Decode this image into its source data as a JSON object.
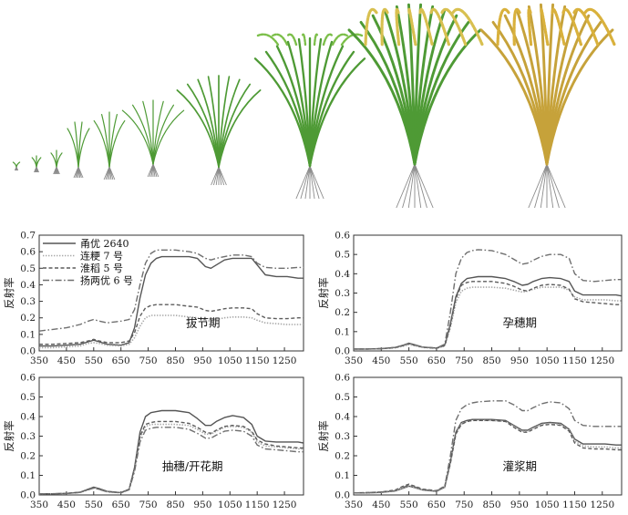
{
  "colors": {
    "series": [
      "#555555",
      "#a8a8a8",
      "#5c5c5c",
      "#6f6f6f"
    ],
    "leaf_green": "#4e9a35",
    "panicle_gold": "#d9b13c",
    "root": "#8a8a8a"
  },
  "illustration": {
    "alt": "rice-growth-stages-illustration",
    "plant_count": 10
  },
  "chart_data": [
    {
      "type": "line",
      "stage_label": "拔节期",
      "ylabel": "反射率",
      "x_ticks": [
        "350",
        "450",
        "550",
        "650",
        "750",
        "850",
        "950",
        "1050",
        "1150",
        "1250"
      ],
      "y_ticks": [
        "0.0",
        "0.1",
        "0.2",
        "0.3",
        "0.4",
        "0.5",
        "0.6",
        "0.7"
      ],
      "xlim": [
        350,
        1320
      ],
      "ylim": [
        0,
        0.7
      ],
      "legend": {
        "placement": "top-left"
      },
      "x": [
        350,
        400,
        450,
        500,
        530,
        550,
        570,
        600,
        650,
        680,
        700,
        720,
        740,
        760,
        780,
        800,
        850,
        900,
        930,
        960,
        980,
        1000,
        1030,
        1060,
        1100,
        1130,
        1150,
        1180,
        1220,
        1260,
        1300,
        1320
      ],
      "series": [
        {
          "name": "甬优 2640",
          "dash": "solid",
          "values": [
            0.03,
            0.03,
            0.035,
            0.04,
            0.055,
            0.065,
            0.055,
            0.04,
            0.035,
            0.05,
            0.14,
            0.32,
            0.46,
            0.53,
            0.56,
            0.57,
            0.57,
            0.57,
            0.56,
            0.51,
            0.5,
            0.52,
            0.55,
            0.56,
            0.56,
            0.56,
            0.52,
            0.46,
            0.45,
            0.45,
            0.44,
            0.44
          ]
        },
        {
          "name": "连粳 7 号",
          "dash": "dot",
          "values": [
            0.02,
            0.02,
            0.025,
            0.03,
            0.045,
            0.05,
            0.045,
            0.035,
            0.03,
            0.04,
            0.08,
            0.15,
            0.2,
            0.215,
            0.215,
            0.215,
            0.215,
            0.205,
            0.2,
            0.185,
            0.18,
            0.19,
            0.2,
            0.205,
            0.205,
            0.2,
            0.185,
            0.17,
            0.165,
            0.16,
            0.16,
            0.16
          ]
        },
        {
          "name": "淮稻 5 号",
          "dash": "dash",
          "values": [
            0.04,
            0.04,
            0.045,
            0.05,
            0.06,
            0.07,
            0.06,
            0.05,
            0.05,
            0.06,
            0.11,
            0.21,
            0.26,
            0.275,
            0.28,
            0.28,
            0.28,
            0.27,
            0.265,
            0.245,
            0.24,
            0.245,
            0.255,
            0.26,
            0.26,
            0.255,
            0.225,
            0.2,
            0.195,
            0.195,
            0.2,
            0.2
          ]
        },
        {
          "name": "扬两优 6 号",
          "dash": "dashdot",
          "values": [
            0.12,
            0.13,
            0.14,
            0.16,
            0.18,
            0.19,
            0.18,
            0.17,
            0.18,
            0.19,
            0.25,
            0.4,
            0.53,
            0.59,
            0.61,
            0.61,
            0.61,
            0.6,
            0.59,
            0.56,
            0.55,
            0.56,
            0.57,
            0.58,
            0.58,
            0.57,
            0.53,
            0.505,
            0.5,
            0.5,
            0.505,
            0.505
          ]
        }
      ]
    },
    {
      "type": "line",
      "stage_label": "孕穗期",
      "ylabel": "反射率",
      "x_ticks": [
        "350",
        "450",
        "550",
        "650",
        "750",
        "850",
        "950",
        "1050",
        "1150",
        "1250"
      ],
      "y_ticks": [
        "0.0",
        "0.1",
        "0.2",
        "0.3",
        "0.4",
        "0.5",
        "0.6"
      ],
      "xlim": [
        350,
        1320
      ],
      "ylim": [
        0,
        0.6
      ],
      "x": [
        350,
        400,
        450,
        500,
        530,
        550,
        570,
        600,
        650,
        680,
        700,
        720,
        740,
        760,
        780,
        800,
        850,
        900,
        930,
        960,
        980,
        1000,
        1030,
        1060,
        1100,
        1130,
        1150,
        1180,
        1220,
        1260,
        1300,
        1320
      ],
      "series": [
        {
          "name": "甬优 2640",
          "dash": "solid",
          "values": [
            0.01,
            0.01,
            0.012,
            0.018,
            0.03,
            0.04,
            0.032,
            0.02,
            0.015,
            0.03,
            0.14,
            0.28,
            0.35,
            0.375,
            0.38,
            0.385,
            0.385,
            0.375,
            0.36,
            0.34,
            0.345,
            0.36,
            0.375,
            0.38,
            0.375,
            0.36,
            0.31,
            0.29,
            0.29,
            0.29,
            0.29,
            0.285
          ]
        },
        {
          "name": "连粳 7 号",
          "dash": "dot",
          "values": [
            0.01,
            0.01,
            0.012,
            0.016,
            0.025,
            0.033,
            0.027,
            0.018,
            0.013,
            0.025,
            0.12,
            0.25,
            0.31,
            0.325,
            0.33,
            0.33,
            0.33,
            0.325,
            0.315,
            0.305,
            0.31,
            0.32,
            0.33,
            0.33,
            0.33,
            0.315,
            0.28,
            0.265,
            0.265,
            0.265,
            0.26,
            0.26
          ]
        },
        {
          "name": "淮稻 5 号",
          "dash": "dash",
          "values": [
            0.01,
            0.01,
            0.012,
            0.017,
            0.028,
            0.037,
            0.03,
            0.019,
            0.014,
            0.028,
            0.13,
            0.27,
            0.34,
            0.355,
            0.36,
            0.36,
            0.36,
            0.35,
            0.335,
            0.315,
            0.31,
            0.325,
            0.34,
            0.345,
            0.34,
            0.32,
            0.27,
            0.255,
            0.25,
            0.245,
            0.24,
            0.24
          ]
        },
        {
          "name": "扬两优 6 号",
          "dash": "dashdot",
          "values": [
            0.01,
            0.01,
            0.012,
            0.018,
            0.03,
            0.04,
            0.032,
            0.02,
            0.015,
            0.035,
            0.2,
            0.4,
            0.48,
            0.51,
            0.52,
            0.525,
            0.52,
            0.5,
            0.475,
            0.45,
            0.455,
            0.47,
            0.49,
            0.5,
            0.5,
            0.48,
            0.4,
            0.365,
            0.36,
            0.365,
            0.37,
            0.37
          ]
        }
      ]
    },
    {
      "type": "line",
      "stage_label": "抽穗/开花期",
      "ylabel": "反射率",
      "x_ticks": [
        "350",
        "450",
        "550",
        "650",
        "750",
        "850",
        "950",
        "1050",
        "1150",
        "1250"
      ],
      "y_ticks": [
        "0.0",
        "0.1",
        "0.2",
        "0.3",
        "0.4",
        "0.5",
        "0.6"
      ],
      "xlim": [
        350,
        1320
      ],
      "ylim": [
        0,
        0.6
      ],
      "x": [
        350,
        400,
        450,
        500,
        530,
        550,
        570,
        600,
        650,
        680,
        700,
        720,
        740,
        760,
        780,
        800,
        850,
        900,
        930,
        960,
        980,
        1000,
        1030,
        1060,
        1100,
        1130,
        1150,
        1180,
        1220,
        1260,
        1300,
        1320
      ],
      "series": [
        {
          "name": "甬优 2640",
          "dash": "solid",
          "values": [
            0.005,
            0.006,
            0.008,
            0.014,
            0.03,
            0.04,
            0.032,
            0.018,
            0.012,
            0.03,
            0.14,
            0.32,
            0.4,
            0.42,
            0.425,
            0.43,
            0.43,
            0.42,
            0.39,
            0.355,
            0.355,
            0.375,
            0.395,
            0.405,
            0.395,
            0.36,
            0.3,
            0.275,
            0.27,
            0.27,
            0.27,
            0.265
          ]
        },
        {
          "name": "连粳 7 号",
          "dash": "dot",
          "values": [
            0.005,
            0.006,
            0.008,
            0.013,
            0.027,
            0.036,
            0.029,
            0.016,
            0.011,
            0.028,
            0.13,
            0.29,
            0.35,
            0.36,
            0.36,
            0.36,
            0.36,
            0.355,
            0.335,
            0.31,
            0.31,
            0.325,
            0.345,
            0.35,
            0.345,
            0.32,
            0.27,
            0.25,
            0.245,
            0.24,
            0.235,
            0.235
          ]
        },
        {
          "name": "淮稻 5 号",
          "dash": "dash",
          "values": [
            0.005,
            0.006,
            0.008,
            0.013,
            0.028,
            0.038,
            0.03,
            0.017,
            0.011,
            0.029,
            0.135,
            0.3,
            0.36,
            0.37,
            0.375,
            0.375,
            0.375,
            0.365,
            0.345,
            0.32,
            0.315,
            0.33,
            0.35,
            0.355,
            0.35,
            0.325,
            0.28,
            0.26,
            0.25,
            0.245,
            0.24,
            0.24
          ]
        },
        {
          "name": "扬两优 6 号",
          "dash": "dashdot",
          "values": [
            0.005,
            0.006,
            0.008,
            0.013,
            0.026,
            0.035,
            0.028,
            0.016,
            0.011,
            0.026,
            0.12,
            0.27,
            0.33,
            0.34,
            0.345,
            0.345,
            0.345,
            0.335,
            0.315,
            0.29,
            0.29,
            0.305,
            0.325,
            0.33,
            0.325,
            0.3,
            0.255,
            0.235,
            0.23,
            0.225,
            0.22,
            0.22
          ]
        }
      ]
    },
    {
      "type": "line",
      "stage_label": "灌浆期",
      "ylabel": "反射率",
      "x_ticks": [
        "350",
        "450",
        "550",
        "650",
        "750",
        "850",
        "950",
        "1050",
        "1150",
        "1250"
      ],
      "y_ticks": [
        "0.0",
        "0.1",
        "0.2",
        "0.3",
        "0.4",
        "0.5",
        "0.6"
      ],
      "xlim": [
        350,
        1320
      ],
      "ylim": [
        0,
        0.6
      ],
      "x": [
        350,
        400,
        450,
        500,
        530,
        550,
        570,
        600,
        650,
        680,
        700,
        720,
        740,
        760,
        780,
        800,
        850,
        900,
        930,
        960,
        980,
        1000,
        1030,
        1060,
        1100,
        1130,
        1150,
        1180,
        1220,
        1260,
        1300,
        1320
      ],
      "series": [
        {
          "name": "甬优 2640",
          "dash": "solid",
          "values": [
            0.01,
            0.01,
            0.013,
            0.02,
            0.035,
            0.045,
            0.038,
            0.025,
            0.018,
            0.04,
            0.17,
            0.32,
            0.37,
            0.38,
            0.385,
            0.385,
            0.385,
            0.38,
            0.355,
            0.33,
            0.33,
            0.345,
            0.365,
            0.37,
            0.365,
            0.335,
            0.285,
            0.26,
            0.26,
            0.26,
            0.255,
            0.255
          ]
        },
        {
          "name": "连粳 7 号",
          "dash": "dot",
          "values": [
            0.01,
            0.01,
            0.013,
            0.02,
            0.034,
            0.044,
            0.037,
            0.024,
            0.018,
            0.038,
            0.16,
            0.31,
            0.365,
            0.375,
            0.38,
            0.38,
            0.38,
            0.375,
            0.35,
            0.325,
            0.325,
            0.34,
            0.36,
            0.365,
            0.36,
            0.33,
            0.275,
            0.25,
            0.245,
            0.245,
            0.24,
            0.24
          ]
        },
        {
          "name": "淮稻 5 号",
          "dash": "dash",
          "values": [
            0.01,
            0.012,
            0.015,
            0.025,
            0.045,
            0.055,
            0.045,
            0.03,
            0.022,
            0.045,
            0.16,
            0.31,
            0.36,
            0.375,
            0.38,
            0.38,
            0.38,
            0.375,
            0.345,
            0.32,
            0.32,
            0.335,
            0.355,
            0.36,
            0.355,
            0.325,
            0.265,
            0.24,
            0.235,
            0.235,
            0.23,
            0.23
          ]
        },
        {
          "name": "扬两优 6 号",
          "dash": "dashdot",
          "values": [
            0.01,
            0.012,
            0.015,
            0.022,
            0.04,
            0.05,
            0.042,
            0.028,
            0.02,
            0.045,
            0.2,
            0.38,
            0.44,
            0.46,
            0.47,
            0.475,
            0.48,
            0.48,
            0.46,
            0.43,
            0.43,
            0.445,
            0.465,
            0.475,
            0.47,
            0.44,
            0.38,
            0.355,
            0.35,
            0.35,
            0.35,
            0.35
          ]
        }
      ]
    }
  ]
}
